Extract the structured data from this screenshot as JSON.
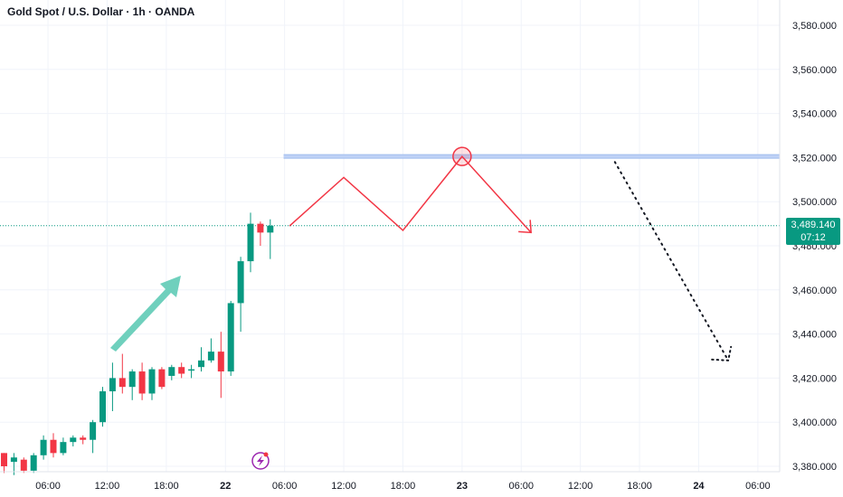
{
  "header": {
    "title": "Gold Spot / U.S. Dollar · 1h · OANDA"
  },
  "price_tag": {
    "price": "3,489.140",
    "countdown": "07:12"
  },
  "colors": {
    "up": "#089981",
    "down": "#f23645",
    "grid": "#f0f3fa",
    "resistance_band": "#bfd2f6",
    "resistance_line": "#9fbcee",
    "projection": "#f23645",
    "arrow": "#6fd0bd",
    "dotted": "#131722",
    "last_price": "#089981"
  },
  "chart_data": {
    "type": "candlestick",
    "symbol": "Gold Spot / U.S. Dollar",
    "interval": "1h",
    "source": "OANDA",
    "ylim": [
      3375,
      3590
    ],
    "y_ticks": [
      3380,
      3400,
      3420,
      3440,
      3460,
      3480,
      3500,
      3520,
      3540,
      3560,
      3580
    ],
    "y_tick_labels": [
      "3,380.000",
      "3,400.000",
      "3,420.000",
      "3,440.000",
      "3,460.000",
      "3,480.000",
      "3,500.000",
      "3,520.000",
      "3,540.000",
      "3,560.000",
      "3,580.000"
    ],
    "x_ticks": [
      {
        "label": "06:00",
        "bar": 4.5,
        "bold": false
      },
      {
        "label": "12:00",
        "bar": 10.5,
        "bold": false
      },
      {
        "label": "18:00",
        "bar": 16.5,
        "bold": false
      },
      {
        "label": "22",
        "bar": 22.5,
        "bold": true
      },
      {
        "label": "06:00",
        "bar": 28.5,
        "bold": false
      },
      {
        "label": "12:00",
        "bar": 34.5,
        "bold": false
      },
      {
        "label": "18:00",
        "bar": 40.5,
        "bold": false
      },
      {
        "label": "23",
        "bar": 46.5,
        "bold": true
      },
      {
        "label": "06:00",
        "bar": 52.5,
        "bold": false
      },
      {
        "label": "12:00",
        "bar": 58.5,
        "bold": false
      },
      {
        "label": "18:00",
        "bar": 64.5,
        "bold": false
      },
      {
        "label": "24",
        "bar": 70.5,
        "bold": true
      },
      {
        "label": "06:00",
        "bar": 76.5,
        "bold": false
      }
    ],
    "candles": [
      {
        "o": 3386,
        "h": 3386,
        "l": 3377,
        "c": 3380
      },
      {
        "o": 3382,
        "h": 3386,
        "l": 3376,
        "c": 3384
      },
      {
        "o": 3383,
        "h": 3384,
        "l": 3377,
        "c": 3378
      },
      {
        "o": 3378,
        "h": 3386,
        "l": 3377,
        "c": 3385
      },
      {
        "o": 3385,
        "h": 3394,
        "l": 3383,
        "c": 3392
      },
      {
        "o": 3392,
        "h": 3395,
        "l": 3384,
        "c": 3386
      },
      {
        "o": 3386,
        "h": 3393,
        "l": 3385,
        "c": 3391
      },
      {
        "o": 3391,
        "h": 3394,
        "l": 3389,
        "c": 3393
      },
      {
        "o": 3393,
        "h": 3394,
        "l": 3390,
        "c": 3392
      },
      {
        "o": 3392,
        "h": 3401,
        "l": 3386,
        "c": 3400
      },
      {
        "o": 3400,
        "h": 3416,
        "l": 3398,
        "c": 3414
      },
      {
        "o": 3414,
        "h": 3427,
        "l": 3405,
        "c": 3420
      },
      {
        "o": 3420,
        "h": 3431,
        "l": 3413,
        "c": 3416
      },
      {
        "o": 3416,
        "h": 3424,
        "l": 3410,
        "c": 3423
      },
      {
        "o": 3423,
        "h": 3427,
        "l": 3410,
        "c": 3413
      },
      {
        "o": 3413,
        "h": 3425,
        "l": 3410,
        "c": 3424
      },
      {
        "o": 3424,
        "h": 3425,
        "l": 3415,
        "c": 3416
      },
      {
        "o": 3421,
        "h": 3426,
        "l": 3419,
        "c": 3425
      },
      {
        "o": 3425,
        "h": 3427,
        "l": 3420,
        "c": 3422
      },
      {
        "o": 3424,
        "h": 3426,
        "l": 3420,
        "c": 3424
      },
      {
        "o": 3425,
        "h": 3434,
        "l": 3423,
        "c": 3428
      },
      {
        "o": 3428,
        "h": 3438,
        "l": 3427,
        "c": 3432
      },
      {
        "o": 3432,
        "h": 3441,
        "l": 3411,
        "c": 3423
      },
      {
        "o": 3423,
        "h": 3455,
        "l": 3421,
        "c": 3454
      },
      {
        "o": 3454,
        "h": 3475,
        "l": 3441,
        "c": 3473
      },
      {
        "o": 3473,
        "h": 3495,
        "l": 3468,
        "c": 3490
      },
      {
        "o": 3490,
        "h": 3491,
        "l": 3480,
        "c": 3486
      },
      {
        "o": 3486,
        "h": 3492,
        "l": 3474,
        "c": 3489.14
      }
    ],
    "last_price": 3489.14,
    "annotations": {
      "resistance_level": 3520.5,
      "projection_path": [
        {
          "bar": 29,
          "price": 3489
        },
        {
          "bar": 34.5,
          "price": 3511
        },
        {
          "bar": 40.5,
          "price": 3487
        },
        {
          "bar": 46.5,
          "price": 3520.5
        },
        {
          "bar": 53.5,
          "price": 3486
        }
      ],
      "dotted_path": [
        {
          "bar": 62,
          "price": 3518
        },
        {
          "bar": 73.5,
          "price": 3428
        }
      ]
    }
  }
}
